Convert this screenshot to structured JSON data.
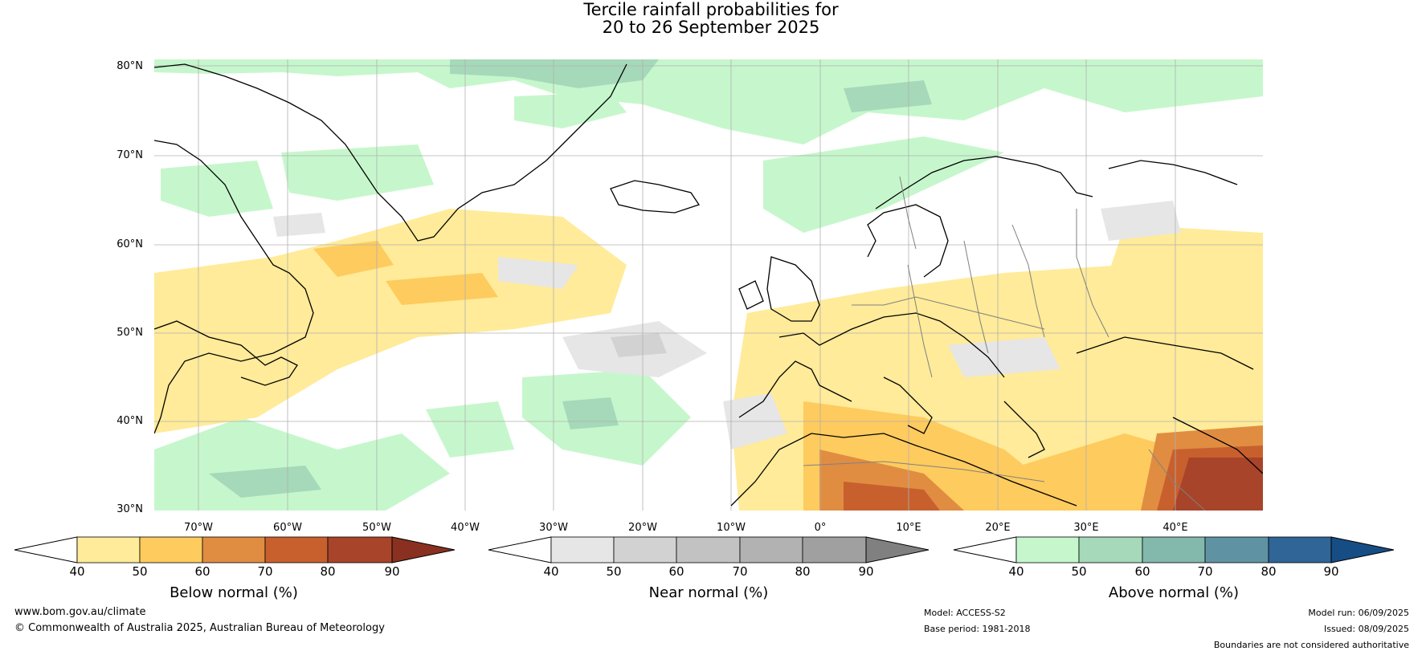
{
  "title": {
    "line1": "Tercile rainfall probabilities for",
    "line2": "20 to 26 September 2025"
  },
  "map": {
    "lat_labels": [
      "80°N",
      "70°N",
      "60°N",
      "50°N",
      "40°N",
      "30°N"
    ],
    "lon_labels": [
      "70°W",
      "60°W",
      "50°W",
      "40°W",
      "30°W",
      "20°W",
      "10°W",
      "0°",
      "10°E",
      "20°E",
      "30°E",
      "40°E"
    ],
    "extent": {
      "lon_min": -76,
      "lon_max": 49,
      "lat_min": 30,
      "lat_max": 81
    },
    "colors": {
      "ocean_land_base": "#ffffff",
      "coastline": "#000000",
      "borders": "#808080",
      "grid": "#b0b0b0"
    }
  },
  "colorbars": {
    "below": {
      "label": "Below normal (%)",
      "ticks": [
        "40",
        "50",
        "60",
        "70",
        "80",
        "90"
      ],
      "colors": [
        "#ffffff",
        "#ffeb99",
        "#fecb5e",
        "#e08d42",
        "#c8602e",
        "#a8442a",
        "#8a3020"
      ]
    },
    "near": {
      "label": "Near normal (%)",
      "ticks": [
        "40",
        "50",
        "60",
        "70",
        "80",
        "90"
      ],
      "colors": [
        "#ffffff",
        "#e6e6e6",
        "#d2d2d2",
        "#c2c2c2",
        "#b2b2b2",
        "#a0a0a0",
        "#808080"
      ]
    },
    "above": {
      "label": "Above normal (%)",
      "ticks": [
        "40",
        "50",
        "60",
        "70",
        "80",
        "90"
      ],
      "colors": [
        "#ffffff",
        "#c6f7cc",
        "#a5d9b9",
        "#83b8ac",
        "#5f93a4",
        "#2f6597",
        "#174d85"
      ]
    }
  },
  "footer": {
    "website": "www.bom.gov.au/climate",
    "copyright": "© Commonwealth of Australia 2025, Australian Bureau of Meteorology",
    "model": "Model: ACCESS-S2",
    "base_period": "Base period: 1981-2018",
    "model_run": "Model run: 06/09/2025",
    "issued": "Issued: 08/09/2025",
    "disclaimer": "Boundaries are not considered authoritative"
  }
}
